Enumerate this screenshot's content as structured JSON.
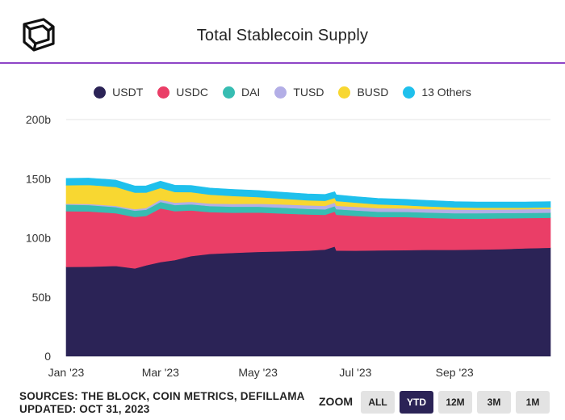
{
  "header": {
    "title": "Total Stablecoin Supply"
  },
  "footer": {
    "sources": "SOURCES: THE BLOCK, COIN METRICS, DEFILLAMA",
    "updated": "UPDATED: OCT 31, 2023"
  },
  "zoom": {
    "label": "ZOOM",
    "buttons": [
      {
        "label": "ALL",
        "active": false
      },
      {
        "label": "YTD",
        "active": true
      },
      {
        "label": "12M",
        "active": false
      },
      {
        "label": "3M",
        "active": false
      },
      {
        "label": "1M",
        "active": false
      }
    ]
  },
  "chart_data": {
    "type": "area",
    "stacked": true,
    "title": "Total Stablecoin Supply",
    "x_type": "date",
    "x_range": [
      "2023-01-01",
      "2023-10-31"
    ],
    "x_ticks": [
      {
        "date": "2023-01-01",
        "label": "Jan '23"
      },
      {
        "date": "2023-03-01",
        "label": "Mar '23"
      },
      {
        "date": "2023-05-01",
        "label": "May '23"
      },
      {
        "date": "2023-07-01",
        "label": "Jul '23"
      },
      {
        "date": "2023-09-01",
        "label": "Sep '23"
      }
    ],
    "y_ticks": [
      {
        "value": 0,
        "label": "0"
      },
      {
        "value": 50,
        "label": "50b"
      },
      {
        "value": 100,
        "label": "100b"
      },
      {
        "value": 150,
        "label": "150b"
      },
      {
        "value": 200,
        "label": "200b"
      }
    ],
    "ylim": [
      0,
      200
    ],
    "y_unit": "b",
    "x": [
      "2023-01-01",
      "2023-01-15",
      "2023-02-01",
      "2023-02-13",
      "2023-02-20",
      "2023-03-01",
      "2023-03-10",
      "2023-03-20",
      "2023-04-01",
      "2023-04-15",
      "2023-05-01",
      "2023-05-15",
      "2023-06-01",
      "2023-06-12",
      "2023-06-18",
      "2023-06-19",
      "2023-07-01",
      "2023-07-15",
      "2023-08-01",
      "2023-08-15",
      "2023-09-01",
      "2023-09-15",
      "2023-10-01",
      "2023-10-15",
      "2023-10-31"
    ],
    "series": [
      {
        "name": "USDT",
        "color": "#2b2356",
        "values": [
          75.5,
          75.6,
          76.3,
          74.2,
          76.8,
          79.6,
          81.2,
          84.6,
          86.5,
          87.3,
          88.2,
          88.6,
          89.2,
          90.1,
          92.7,
          89.3,
          89.2,
          89.4,
          89.6,
          89.9,
          89.9,
          90.2,
          90.5,
          91.1,
          91.7
        ]
      },
      {
        "name": "USDC",
        "color": "#ea3e67",
        "values": [
          47.0,
          46.8,
          44.5,
          43.5,
          41.8,
          45.3,
          41.4,
          38.6,
          35.3,
          34.0,
          33.2,
          32.1,
          30.6,
          29.4,
          29.5,
          30.3,
          29.4,
          28.2,
          28.0,
          27.0,
          26.4,
          26.0,
          26.0,
          25.6,
          25.3
        ]
      },
      {
        "name": "DAI",
        "color": "#37bdb2",
        "values": [
          5.6,
          5.4,
          5.3,
          5.3,
          5.2,
          5.5,
          5.2,
          5.2,
          5.1,
          5.1,
          5.0,
          4.9,
          4.7,
          4.6,
          4.6,
          4.6,
          4.6,
          4.5,
          4.4,
          4.5,
          4.5,
          4.6,
          4.5,
          4.4,
          4.3
        ]
      },
      {
        "name": "TUSD",
        "color": "#b3aee6",
        "values": [
          0.8,
          0.9,
          1.0,
          1.2,
          1.5,
          1.8,
          2.0,
          2.1,
          2.1,
          2.3,
          2.5,
          2.8,
          3.0,
          3.0,
          3.0,
          3.0,
          3.1,
          3.1,
          3.0,
          3.0,
          3.1,
          3.0,
          3.0,
          3.1,
          3.2
        ]
      },
      {
        "name": "BUSD",
        "color": "#f8d731",
        "values": [
          15.6,
          16.1,
          16.0,
          14.0,
          13.0,
          10.0,
          9.0,
          8.2,
          7.5,
          6.7,
          5.6,
          4.9,
          4.3,
          4.2,
          4.0,
          4.0,
          3.5,
          3.1,
          2.6,
          2.3,
          1.9,
          1.7,
          1.5,
          1.3,
          1.3
        ]
      },
      {
        "name": "13 Others",
        "color": "#1fc0ec",
        "values": [
          5.8,
          5.8,
          5.8,
          5.7,
          5.7,
          5.8,
          5.7,
          5.6,
          5.6,
          5.6,
          5.6,
          5.4,
          5.3,
          5.4,
          5.2,
          5.2,
          5.1,
          5.1,
          5.0,
          5.0,
          4.9,
          4.9,
          4.9,
          4.9,
          4.9
        ]
      }
    ]
  }
}
